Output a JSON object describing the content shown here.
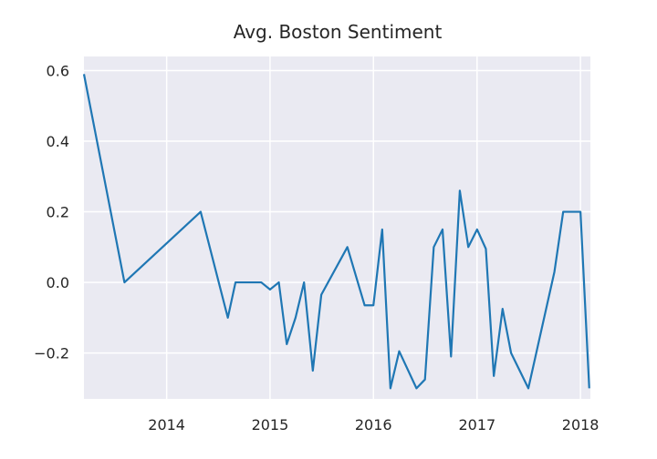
{
  "chart_data": {
    "type": "line",
    "title": "Avg. Boston Sentiment",
    "xlabel": "",
    "ylabel": "",
    "x_range": [
      "2013-03-15",
      "2018-02-05"
    ],
    "ylim": [
      -0.33,
      0.64
    ],
    "x_ticks": [
      {
        "date": "2014-01-01",
        "label": "2014"
      },
      {
        "date": "2015-01-01",
        "label": "2015"
      },
      {
        "date": "2016-01-01",
        "label": "2016"
      },
      {
        "date": "2017-01-01",
        "label": "2017"
      },
      {
        "date": "2018-01-01",
        "label": "2018"
      }
    ],
    "y_ticks": [
      {
        "value": 0.6,
        "label": "0.6"
      },
      {
        "value": 0.4,
        "label": "0.4"
      },
      {
        "value": 0.2,
        "label": "0.2"
      },
      {
        "value": 0.0,
        "label": "0.0"
      },
      {
        "value": -0.2,
        "label": "−0.2"
      }
    ],
    "grid": true,
    "line_color": "#1f77b4",
    "background_color": "#eaeaf2",
    "series": [
      {
        "x": [
          "2013-03-15",
          "2013-08-05",
          "2014-05-01",
          "2014-08-05",
          "2014-09-01",
          "2014-12-01",
          "2015-01-01",
          "2015-02-01",
          "2015-03-01",
          "2015-04-01",
          "2015-05-01",
          "2015-06-01",
          "2015-07-01",
          "2015-10-01",
          "2015-12-01",
          "2016-01-01",
          "2016-02-01",
          "2016-03-01",
          "2016-04-01",
          "2016-06-01",
          "2016-07-01",
          "2016-08-01",
          "2016-09-01",
          "2016-10-01",
          "2016-11-01",
          "2016-12-01",
          "2017-01-01",
          "2017-02-01",
          "2017-03-01",
          "2017-04-01",
          "2017-05-01",
          "2017-07-01",
          "2017-10-01",
          "2017-11-01",
          "2018-01-01",
          "2018-02-01"
        ],
        "y": [
          0.59,
          0.0,
          0.2,
          -0.1,
          0.0,
          0.0,
          -0.02,
          0.0,
          -0.175,
          -0.1,
          0.0,
          -0.25,
          -0.035,
          0.1,
          -0.065,
          -0.065,
          0.15,
          -0.3,
          -0.195,
          -0.3,
          -0.275,
          0.1,
          0.15,
          -0.21,
          0.26,
          0.1,
          0.15,
          0.095,
          -0.265,
          -0.075,
          -0.2,
          -0.3,
          0.03,
          0.2,
          0.2,
          -0.3
        ]
      }
    ]
  }
}
